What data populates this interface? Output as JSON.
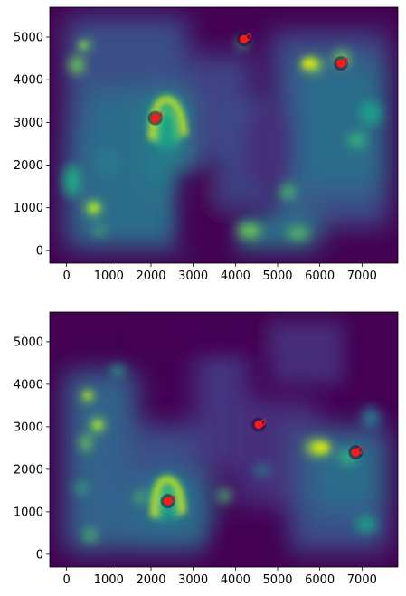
{
  "colors": {
    "background_tissue": "#440154",
    "colormap": [
      "#440154",
      "#46337e",
      "#365c8d",
      "#277f8e",
      "#1fa187",
      "#4ac16d",
      "#a0da39",
      "#fde725"
    ],
    "marker": "#ff1a1a"
  },
  "chart_data": [
    {
      "type": "heatmap",
      "title": "",
      "xlabel": "",
      "ylabel": "",
      "xlim": [
        -400,
        7850
      ],
      "ylim": [
        -300,
        5700
      ],
      "x_ticks": [
        0,
        1000,
        2000,
        3000,
        4000,
        5000,
        6000,
        7000
      ],
      "y_ticks": [
        0,
        1000,
        2000,
        3000,
        4000,
        5000
      ],
      "x_tick_labels": [
        "0",
        "1000",
        "2000",
        "3000",
        "4000",
        "5000",
        "6000",
        "7000"
      ],
      "y_tick_labels": [
        "0",
        "1000",
        "2000",
        "3000",
        "4000",
        "5000"
      ],
      "colormap": "viridis",
      "grid": false,
      "points": [
        {
          "x": 2100,
          "y": 3100
        },
        {
          "x": 4200,
          "y": 4950
        },
        {
          "x": 6500,
          "y": 4380
        }
      ]
    },
    {
      "type": "heatmap",
      "title": "",
      "xlabel": "",
      "ylabel": "",
      "xlim": [
        -400,
        7850
      ],
      "ylim": [
        -300,
        5700
      ],
      "x_ticks": [
        0,
        1000,
        2000,
        3000,
        4000,
        5000,
        6000,
        7000
      ],
      "y_ticks": [
        0,
        1000,
        2000,
        3000,
        4000,
        5000
      ],
      "x_tick_labels": [
        "0",
        "1000",
        "2000",
        "3000",
        "4000",
        "5000",
        "6000",
        "7000"
      ],
      "y_tick_labels": [
        "0",
        "1000",
        "2000",
        "3000",
        "4000",
        "5000"
      ],
      "colormap": "viridis",
      "grid": false,
      "points": [
        {
          "x": 2400,
          "y": 1250
        },
        {
          "x": 4550,
          "y": 3050
        },
        {
          "x": 6850,
          "y": 2400
        }
      ]
    }
  ]
}
